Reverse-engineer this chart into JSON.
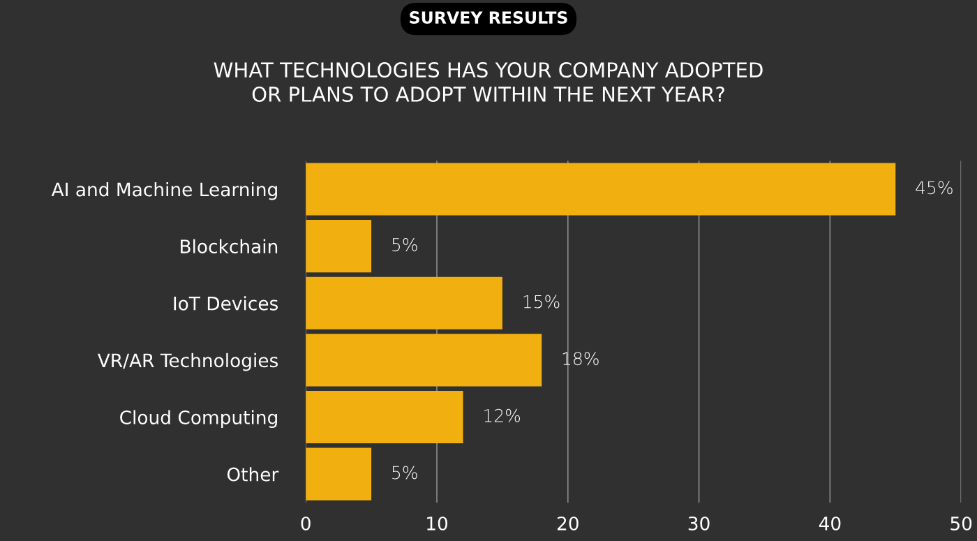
{
  "chart_data": {
    "type": "bar",
    "orientation": "horizontal",
    "title": "SURVEY RESULTS",
    "subtitle": "WHAT TECHNOLOGIES HAS YOUR COMPANY ADOPTED\nOR PLANS TO ADOPT WITHIN THE NEXT YEAR?",
    "categories": [
      "AI and Machine Learning",
      "Blockchain",
      "IoT Devices",
      "VR/AR Technologies",
      "Cloud Computing",
      "Other"
    ],
    "values": [
      45,
      5,
      15,
      18,
      12,
      5
    ],
    "value_labels": [
      "45%",
      "5%",
      "15%",
      "18%",
      "12%",
      "5%"
    ],
    "color": "#f2b010",
    "xlim": [
      0,
      50
    ],
    "xticks": [
      0,
      10,
      20,
      30,
      40,
      50
    ],
    "grid": "x",
    "legend": false
  }
}
